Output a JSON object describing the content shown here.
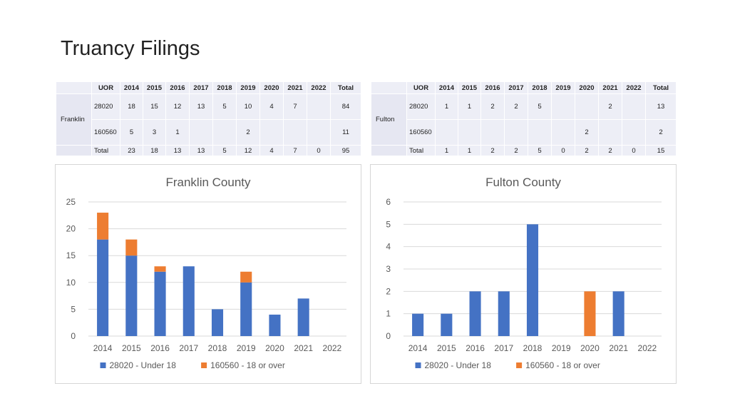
{
  "page": {
    "title": "Truancy Filings"
  },
  "tables": [
    {
      "county": "Franklin",
      "headers": [
        "UOR",
        "2014",
        "2015",
        "2016",
        "2017",
        "2018",
        "2019",
        "2020",
        "2021",
        "2022",
        "Total"
      ],
      "rows": [
        {
          "uor": "28020",
          "cells": [
            "18",
            "15",
            "12",
            "13",
            "5",
            "10",
            "4",
            "7",
            "",
            "84"
          ]
        },
        {
          "uor": "160560",
          "cells": [
            "5",
            "3",
            "1",
            "",
            "",
            "2",
            "",
            "",
            "",
            "11"
          ]
        }
      ],
      "total": {
        "label": "Total",
        "cells": [
          "23",
          "18",
          "13",
          "13",
          "5",
          "12",
          "4",
          "7",
          "0",
          "95"
        ]
      }
    },
    {
      "county": "Fulton",
      "headers": [
        "UOR",
        "2014",
        "2015",
        "2016",
        "2017",
        "2018",
        "2019",
        "2020",
        "2021",
        "2022",
        "Total"
      ],
      "rows": [
        {
          "uor": "28020",
          "cells": [
            "1",
            "1",
            "2",
            "2",
            "5",
            "",
            "",
            "2",
            "",
            "13"
          ]
        },
        {
          "uor": "160560",
          "cells": [
            "",
            "",
            "",
            "",
            "",
            "",
            "2",
            "",
            "",
            "2"
          ]
        }
      ],
      "total": {
        "label": "Total",
        "cells": [
          "1",
          "1",
          "2",
          "2",
          "5",
          "0",
          "2",
          "2",
          "0",
          "15"
        ]
      }
    }
  ],
  "chart_data": [
    {
      "type": "bar",
      "stacked": true,
      "title": "Franklin County",
      "categories": [
        "2014",
        "2015",
        "2016",
        "2017",
        "2018",
        "2019",
        "2020",
        "2021",
        "2022"
      ],
      "series": [
        {
          "name": "28020 - Under 18",
          "color": "#4472c4",
          "values": [
            18,
            15,
            12,
            13,
            5,
            10,
            4,
            7,
            0
          ]
        },
        {
          "name": "160560 - 18 or over",
          "color": "#ed7d31",
          "values": [
            5,
            3,
            1,
            0,
            0,
            2,
            0,
            0,
            0
          ]
        }
      ],
      "ylim": [
        0,
        25
      ],
      "yticks": [
        0,
        5,
        10,
        15,
        20,
        25
      ],
      "grid": true,
      "legend": "bottom"
    },
    {
      "type": "bar",
      "stacked": true,
      "title": "Fulton County",
      "categories": [
        "2014",
        "2015",
        "2016",
        "2017",
        "2018",
        "2019",
        "2020",
        "2021",
        "2022"
      ],
      "series": [
        {
          "name": "28020 - Under 18",
          "color": "#4472c4",
          "values": [
            1,
            1,
            2,
            2,
            5,
            0,
            0,
            2,
            0
          ]
        },
        {
          "name": "160560 - 18 or over",
          "color": "#ed7d31",
          "values": [
            0,
            0,
            0,
            0,
            0,
            0,
            2,
            0,
            0
          ]
        }
      ],
      "ylim": [
        0,
        6
      ],
      "yticks": [
        0,
        1,
        2,
        3,
        4,
        5,
        6
      ],
      "grid": true,
      "legend": "bottom"
    }
  ]
}
